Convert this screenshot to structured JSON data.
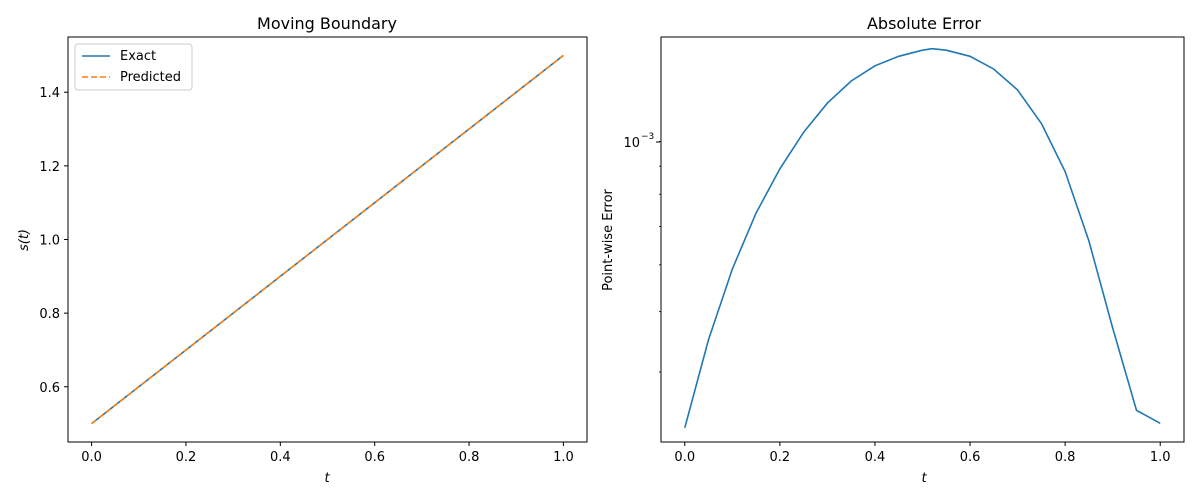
{
  "chart_data": [
    {
      "type": "line",
      "title": "Moving Boundary",
      "xlabel": "t",
      "ylabel": "s(t)",
      "xlim": [
        -0.05,
        1.05
      ],
      "ylim": [
        0.45,
        1.55
      ],
      "xticks": [
        0.0,
        0.2,
        0.4,
        0.6,
        0.8,
        1.0
      ],
      "xtick_labels": [
        "0.0",
        "0.2",
        "0.4",
        "0.6",
        "0.8",
        "1.0"
      ],
      "yticks": [
        0.6,
        0.8,
        1.0,
        1.2,
        1.4
      ],
      "ytick_labels": [
        "0.6",
        "0.8",
        "1.0",
        "1.2",
        "1.4"
      ],
      "legend_position": "upper-left",
      "series": [
        {
          "name": "Exact",
          "color": "#1f77b4",
          "style": "solid",
          "x": [
            0.0,
            0.5,
            1.0
          ],
          "y": [
            0.5,
            1.0,
            1.5
          ]
        },
        {
          "name": "Predicted",
          "color": "#ff7f0e",
          "style": "dashed",
          "x": [
            0.0,
            0.5,
            1.0
          ],
          "y": [
            0.5,
            1.0,
            1.5
          ]
        }
      ]
    },
    {
      "type": "line",
      "title": "Absolute Error",
      "xlabel": "t",
      "ylabel": "Point-wise Error",
      "yscale": "log",
      "xlim": [
        -0.05,
        1.05
      ],
      "ylim": [
        0.000215,
        0.00148
      ],
      "xticks": [
        0.0,
        0.2,
        0.4,
        0.6,
        0.8,
        1.0
      ],
      "xtick_labels": [
        "0.0",
        "0.2",
        "0.4",
        "0.6",
        "0.8",
        "1.0"
      ],
      "yticks": [
        0.001
      ],
      "ytick_labels": [
        "10",
        "−3"
      ],
      "series": [
        {
          "name": "",
          "color": "#1f77b4",
          "style": "solid",
          "x": [
            0.0,
            0.05,
            0.1,
            0.15,
            0.2,
            0.25,
            0.3,
            0.35,
            0.4,
            0.45,
            0.5,
            0.52,
            0.55,
            0.6,
            0.65,
            0.7,
            0.75,
            0.8,
            0.85,
            0.9,
            0.95,
            1.0
          ],
          "y": [
            0.00023,
            0.00035,
            0.00049,
            0.00064,
            0.00079,
            0.00094,
            0.00108,
            0.0012,
            0.00129,
            0.00135,
            0.00139,
            0.0014,
            0.00139,
            0.00135,
            0.00127,
            0.00115,
            0.00098,
            0.00078,
            0.00056,
            0.00037,
            0.00025,
            0.000235
          ]
        }
      ]
    }
  ]
}
